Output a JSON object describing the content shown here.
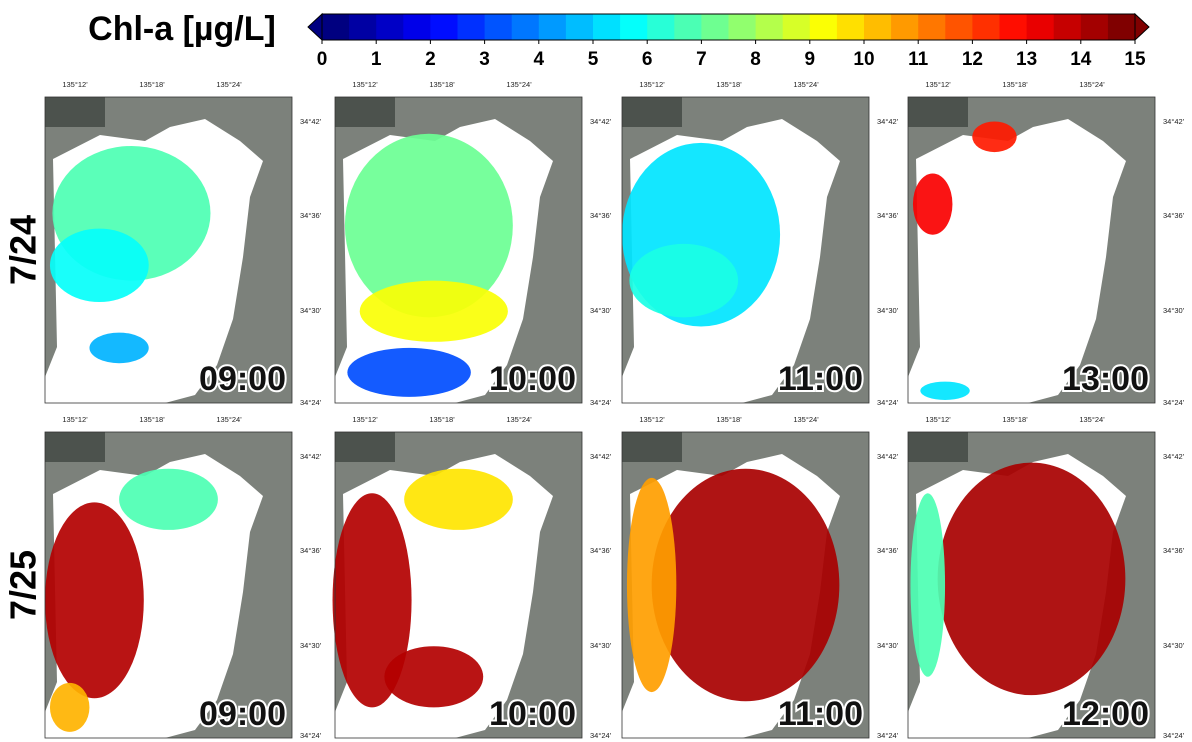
{
  "colorbar": {
    "title": "Chl-a [µg/L]",
    "ticks": [
      0,
      1,
      2,
      3,
      4,
      5,
      6,
      7,
      8,
      9,
      10,
      11,
      12,
      13,
      14,
      15
    ]
  },
  "lon_labels": [
    "135°12'",
    "135°18'",
    "135°24'"
  ],
  "lat_labels": [
    "34°42'",
    "34°36'",
    "34°30'",
    "34°24'"
  ],
  "rows": [
    {
      "label": "7/24",
      "panels": [
        {
          "time": "09:00"
        },
        {
          "time": "10:00"
        },
        {
          "time": "11:00"
        },
        {
          "time": "13:00"
        }
      ]
    },
    {
      "label": "7/25",
      "panels": [
        {
          "time": "09:00"
        },
        {
          "time": "10:00"
        },
        {
          "time": "11:00"
        },
        {
          "time": "12:00"
        }
      ]
    }
  ]
}
